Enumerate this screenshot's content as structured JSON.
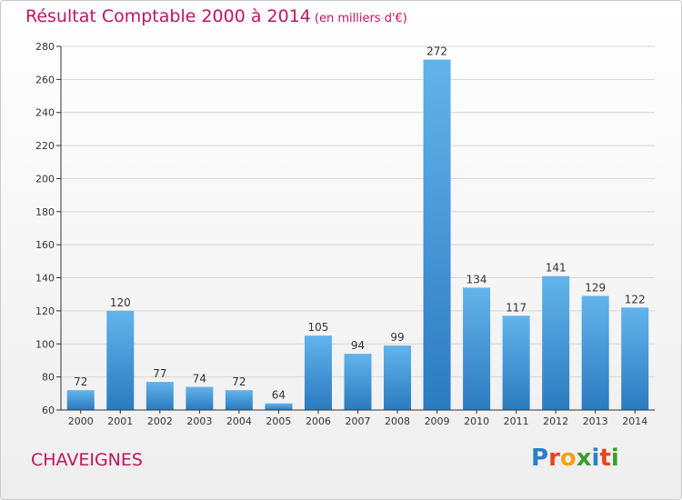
{
  "title": "Résultat Comptable 2000 à 2014",
  "unit": "(en milliers d'€)",
  "commune": "CHAVEIGNES",
  "logo": {
    "text": "Proxiti",
    "letter_colors": [
      "#2b7fc7",
      "#e8451c",
      "#f2a11a",
      "#3a9e2f",
      "#2b7fc7",
      "#e8451c",
      "#3a9e2f"
    ]
  },
  "colors": {
    "bar_top": "#63b3eb",
    "bar_bottom": "#2a7bc0",
    "title": "#c0145f",
    "grid": "#d6d6d6",
    "axis": "#333333"
  },
  "chart_data": {
    "type": "bar",
    "title": "Résultat Comptable 2000 à 2014",
    "unit": "(en milliers d'€)",
    "categories": [
      "2000",
      "2001",
      "2002",
      "2003",
      "2004",
      "2005",
      "2006",
      "2007",
      "2008",
      "2009",
      "2010",
      "2011",
      "2012",
      "2013",
      "2014"
    ],
    "values": [
      72,
      120,
      77,
      74,
      72,
      64,
      105,
      94,
      99,
      272,
      134,
      117,
      141,
      129,
      122
    ],
    "ylim": [
      60,
      280
    ],
    "yticks": [
      60,
      80,
      100,
      120,
      140,
      160,
      180,
      200,
      220,
      240,
      260,
      280
    ],
    "grid": true
  }
}
